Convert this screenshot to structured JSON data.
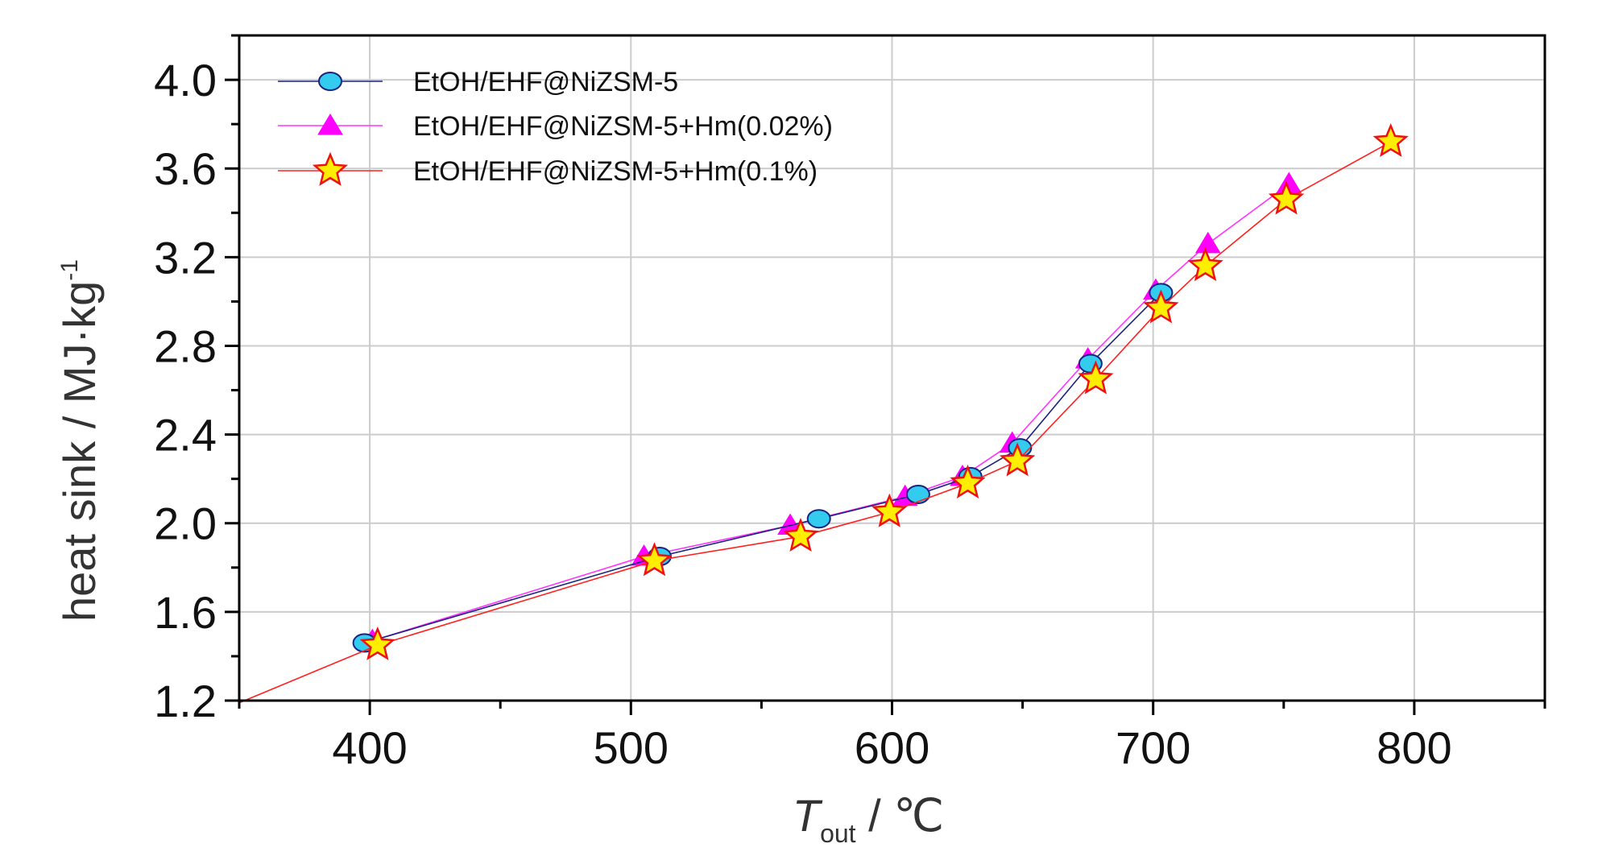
{
  "chart_data": {
    "type": "line",
    "ylabel": "heat sink / MJ·kg",
    "ylabel_superscript": "-1",
    "xlabel_main": "T",
    "xlabel_subscript": "out",
    "xlabel_unit": " / ℃",
    "xlim": [
      350,
      850
    ],
    "ylim": [
      1.2,
      4.2
    ],
    "xticks": [
      400,
      500,
      600,
      700,
      800
    ],
    "xtick_labels": [
      "400",
      "500",
      "600",
      "700",
      "800"
    ],
    "yticks": [
      1.2,
      1.6,
      2.0,
      2.4,
      2.8,
      3.2,
      3.6,
      4.0
    ],
    "ytick_labels": [
      "1.2",
      "1.6",
      "2.0",
      "2.4",
      "2.8",
      "3.2",
      "3.6",
      "4.0"
    ],
    "grid": true,
    "legend_position": "top-left",
    "series": [
      {
        "name": "EtOH/EHF@NiZSM-5",
        "marker": "circle",
        "line_color": "#1a237e",
        "marker_fill": "#33ccee",
        "x": [
          398,
          511,
          572,
          610,
          630,
          649,
          676,
          703
        ],
        "y": [
          1.46,
          1.85,
          2.02,
          2.13,
          2.21,
          2.34,
          2.72,
          3.04
        ]
      },
      {
        "name": "EtOH/EHF@NiZSM-5+Hm(0.02%)",
        "marker": "triangle",
        "line_color": "#ff33ff",
        "marker_fill": "#ff00ff",
        "x": [
          401,
          505,
          561,
          605,
          627,
          646,
          675,
          701,
          721,
          752
        ],
        "y": [
          1.47,
          1.85,
          1.99,
          2.12,
          2.21,
          2.36,
          2.74,
          3.05,
          3.26,
          3.53
        ]
      },
      {
        "name": "EtOH/EHF@NiZSM-5+Hm(0.1%)",
        "marker": "star",
        "line_color": "#ff2020",
        "marker_fill": "#ffee00",
        "marker_stroke": "#ee1111",
        "x": [
          350,
          403,
          509,
          565,
          599,
          629,
          648,
          678,
          703,
          720,
          751,
          791
        ],
        "y": [
          1.19,
          1.45,
          1.83,
          1.94,
          2.05,
          2.18,
          2.28,
          2.65,
          2.97,
          3.16,
          3.46,
          3.72
        ]
      }
    ]
  }
}
